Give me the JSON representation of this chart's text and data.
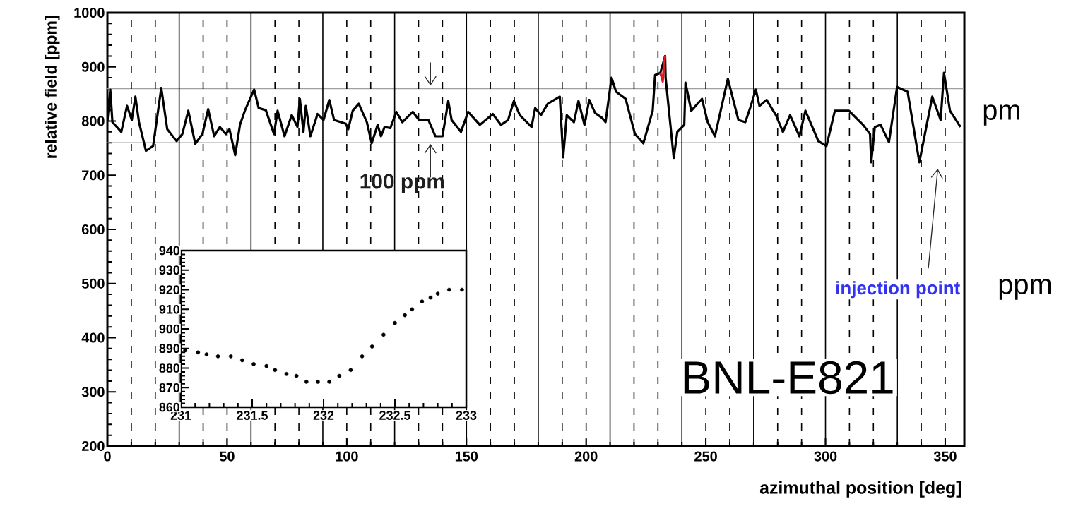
{
  "chart_data": [
    {
      "type": "line",
      "xlabel": "azimuthal position [deg]",
      "ylabel": "relative field [ppm]",
      "xlim": [
        0,
        358
      ],
      "ylim": [
        200,
        1000
      ],
      "xticks": [
        0,
        50,
        100,
        150,
        200,
        250,
        300,
        350
      ],
      "yticks": [
        200,
        300,
        400,
        500,
        600,
        700,
        800,
        900,
        1000
      ],
      "series": [
        {
          "color": "#000000",
          "x": [
            0,
            1.2,
            2.1,
            5.8,
            8.2,
            10.2,
            11.7,
            13.2,
            16.1,
            19.1,
            22.5,
            25.0,
            28.9,
            31.3,
            33.8,
            36.7,
            39.7,
            42.1,
            44.6,
            47.0,
            49.5,
            51.0,
            53.4,
            55.4,
            57.4,
            61.3,
            63.2,
            66.2,
            69.6,
            71.1,
            74.0,
            77.0,
            79.4,
            80.4,
            81.9,
            82.9,
            84.8,
            87.8,
            90.3,
            92.7,
            94.7,
            99.6,
            100.6,
            102.5,
            105.0,
            108.4,
            110.4,
            112.9,
            114.3,
            115.8,
            118.2,
            120.7,
            123.2,
            127.6,
            130.2,
            134.1,
            137.0,
            140.0,
            142.4,
            143.8,
            147.7,
            150.7,
            155.6,
            161.0,
            164.4,
            167.4,
            169.8,
            172.3,
            177.2,
            178.7,
            181.1,
            184.0,
            189.0,
            190.4,
            191.9,
            194.9,
            196.8,
            199.3,
            201.3,
            203.7,
            206.6,
            208.1,
            210.6,
            212.5,
            216.5,
            220.4,
            223.9,
            227.8,
            228.8,
            231,
            233,
            233.2,
            236.6,
            238.1,
            241.0,
            241.5,
            243.9,
            248.4,
            250.8,
            253.8,
            259.2,
            263.6,
            266.5,
            268.5,
            270.9,
            272.4,
            275.4,
            279.3,
            282.2,
            285.2,
            289.1,
            291.6,
            297.0,
            300.4,
            303.9,
            309.8,
            315.7,
            318.6,
            319.1,
            320.6,
            323.0,
            326.5,
            329.9,
            334.3,
            339.2,
            344.6,
            348.1,
            349.5,
            352.0,
            356.4
          ],
          "values": [
            800,
            858,
            798,
            780,
            828,
            802,
            845,
            798,
            745,
            754,
            861,
            785,
            763,
            776,
            819,
            758,
            776,
            822,
            772,
            789,
            776,
            785,
            737,
            793,
            819,
            858,
            824,
            820,
            776,
            819,
            772,
            811,
            789,
            841,
            780,
            828,
            772,
            813,
            802,
            839,
            802,
            795,
            785,
            819,
            832,
            798,
            759,
            793,
            772,
            789,
            787,
            817,
            798,
            817,
            802,
            802,
            772,
            772,
            837,
            802,
            780,
            817,
            793,
            813,
            793,
            802,
            837,
            811,
            789,
            824,
            811,
            832,
            845,
            733,
            811,
            798,
            837,
            793,
            839,
            815,
            806,
            798,
            880,
            854,
            841,
            776,
            759,
            819,
            885,
            889,
            920,
            880,
            732,
            780,
            793,
            871,
            819,
            841,
            798,
            772,
            878,
            802,
            798,
            824,
            858,
            828,
            839,
            811,
            780,
            811,
            772,
            819,
            763,
            754,
            819,
            819,
            793,
            776,
            724,
            789,
            793,
            761,
            863,
            854,
            724,
            845,
            802,
            889,
            819,
            789
          ]
        },
        {
          "color": "#e8141c",
          "x": [
            231,
            231.5,
            232,
            232.5,
            233
          ],
          "values": [
            889,
            882,
            873,
            903,
            920
          ]
        }
      ],
      "ref_lines": [
        {
          "axis": "y",
          "value": 860,
          "color": "#a0a0a0",
          "line_style": "solid"
        },
        {
          "axis": "y",
          "value": 760,
          "color": "#a0a0a0",
          "line_style": "solid"
        },
        {
          "axis": "x",
          "value": 10,
          "color": "#000000",
          "line_style": "dashed"
        },
        {
          "axis": "x",
          "value": 20,
          "color": "#000000",
          "line_style": "dashed"
        },
        {
          "axis": "x",
          "value": 30,
          "color": "#000000",
          "line_style": "solid"
        },
        {
          "axis": "x",
          "value": 40,
          "color": "#000000",
          "line_style": "dashed"
        },
        {
          "axis": "x",
          "value": 50,
          "color": "#000000",
          "line_style": "dashed"
        },
        {
          "axis": "x",
          "value": 60,
          "color": "#000000",
          "line_style": "solid"
        },
        {
          "axis": "x",
          "value": 70,
          "color": "#000000",
          "line_style": "dashed"
        },
        {
          "axis": "x",
          "value": 80,
          "color": "#000000",
          "line_style": "dashed"
        },
        {
          "axis": "x",
          "value": 90,
          "color": "#000000",
          "line_style": "solid"
        },
        {
          "axis": "x",
          "value": 100,
          "color": "#000000",
          "line_style": "dashed"
        },
        {
          "axis": "x",
          "value": 110,
          "color": "#000000",
          "line_style": "dashed"
        },
        {
          "axis": "x",
          "value": 120,
          "color": "#000000",
          "line_style": "solid"
        },
        {
          "axis": "x",
          "value": 130,
          "color": "#000000",
          "line_style": "dashed"
        },
        {
          "axis": "x",
          "value": 140,
          "color": "#000000",
          "line_style": "dashed"
        },
        {
          "axis": "x",
          "value": 150,
          "color": "#000000",
          "line_style": "solid"
        },
        {
          "axis": "x",
          "value": 160,
          "color": "#000000",
          "line_style": "dashed"
        },
        {
          "axis": "x",
          "value": 170,
          "color": "#000000",
          "line_style": "dashed"
        },
        {
          "axis": "x",
          "value": 180,
          "color": "#000000",
          "line_style": "solid"
        },
        {
          "axis": "x",
          "value": 190,
          "color": "#000000",
          "line_style": "dashed"
        },
        {
          "axis": "x",
          "value": 200,
          "color": "#000000",
          "line_style": "dashed"
        },
        {
          "axis": "x",
          "value": 210,
          "color": "#000000",
          "line_style": "solid"
        },
        {
          "axis": "x",
          "value": 220,
          "color": "#000000",
          "line_style": "dashed"
        },
        {
          "axis": "x",
          "value": 230,
          "color": "#000000",
          "line_style": "dashed"
        },
        {
          "axis": "x",
          "value": 240,
          "color": "#000000",
          "line_style": "solid"
        },
        {
          "axis": "x",
          "value": 250,
          "color": "#000000",
          "line_style": "dashed"
        },
        {
          "axis": "x",
          "value": 260,
          "color": "#000000",
          "line_style": "dashed"
        },
        {
          "axis": "x",
          "value": 270,
          "color": "#000000",
          "line_style": "solid"
        },
        {
          "axis": "x",
          "value": 280,
          "color": "#000000",
          "line_style": "dashed"
        },
        {
          "axis": "x",
          "value": 290,
          "color": "#000000",
          "line_style": "dashed"
        },
        {
          "axis": "x",
          "value": 300,
          "color": "#000000",
          "line_style": "solid"
        },
        {
          "axis": "x",
          "value": 310,
          "color": "#000000",
          "line_style": "dashed"
        },
        {
          "axis": "x",
          "value": 320,
          "color": "#000000",
          "line_style": "dashed"
        },
        {
          "axis": "x",
          "value": 330,
          "color": "#000000",
          "line_style": "solid"
        },
        {
          "axis": "x",
          "value": 340,
          "color": "#000000",
          "line_style": "dashed"
        },
        {
          "axis": "x",
          "value": 350,
          "color": "#000000",
          "line_style": "dashed"
        }
      ],
      "annotations": [
        "100 ppm",
        "injection point",
        "BNL-E821",
        "pm",
        "ppm"
      ]
    },
    {
      "type": "scatter",
      "marker": "circle",
      "xlim": [
        231,
        233
      ],
      "ylim": [
        860,
        940
      ],
      "xticks": [
        231,
        231.5,
        232,
        232.5,
        233
      ],
      "yticks": [
        860,
        870,
        880,
        890,
        900,
        910,
        920,
        930,
        940
      ],
      "series": [
        {
          "color": "#000000",
          "x": [
            231.03,
            231.12,
            231.18,
            231.26,
            231.35,
            231.43,
            231.51,
            231.6,
            231.66,
            231.74,
            231.81,
            231.88,
            231.96,
            232.04,
            232.11,
            232.19,
            232.27,
            232.34,
            232.42,
            232.5,
            232.57,
            232.62,
            232.69,
            232.75,
            232.8,
            232.88,
            232.97
          ],
          "values": [
            889,
            888,
            887,
            886,
            886,
            884,
            882,
            881,
            879,
            877,
            876,
            873,
            873,
            873,
            876,
            879,
            886,
            891,
            897,
            903,
            907,
            910,
            914,
            916,
            918,
            920,
            920
          ]
        }
      ]
    }
  ]
}
